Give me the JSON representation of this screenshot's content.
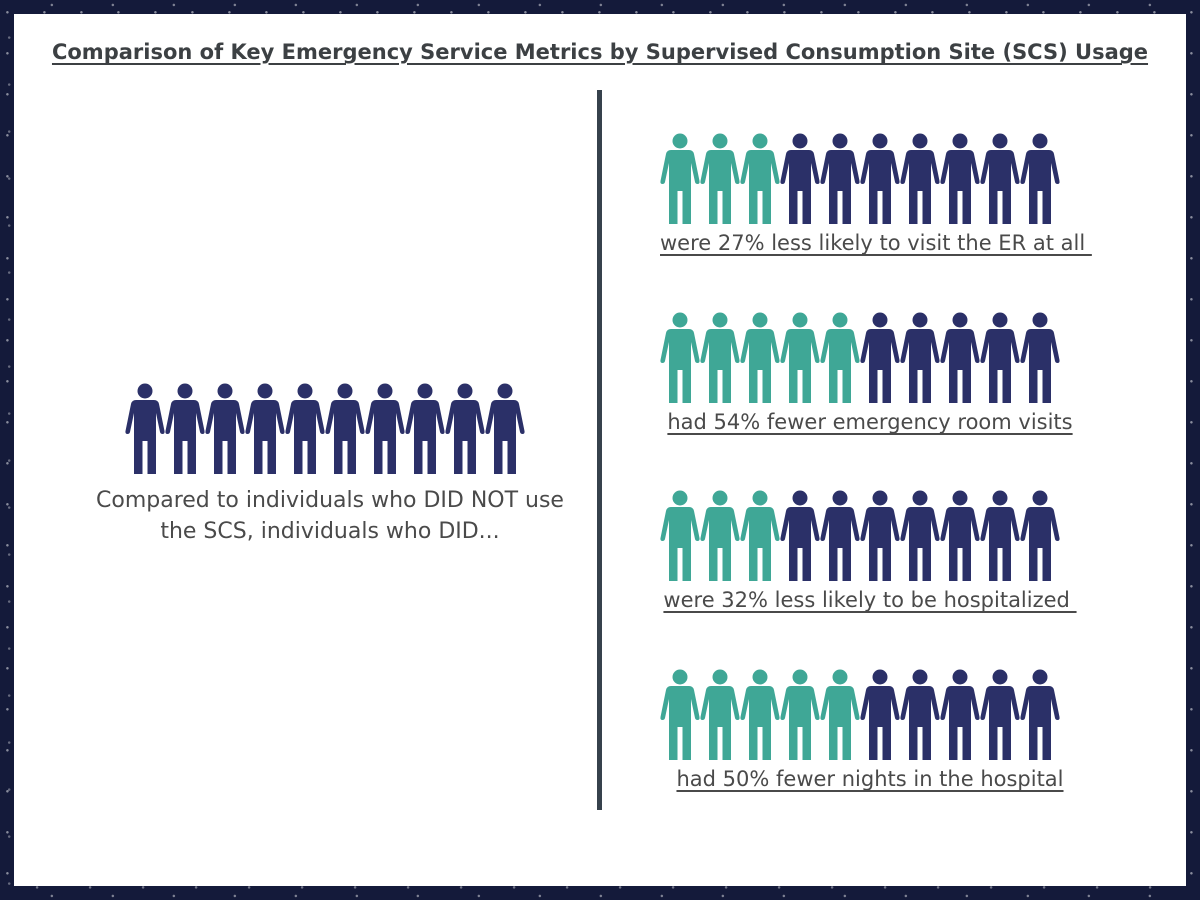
{
  "title": "Comparison of Key Emergency Service Metrics by Supervised Consumption Site (SCS) Usage",
  "colors": {
    "highlight": "#3fa796",
    "base": "#2b3068"
  },
  "icon": "person-icon",
  "comparison_group": {
    "figures": 10,
    "caption_line1": "Compared to individuals who DID NOT use",
    "caption_line2": "the SCS, individuals who DID..."
  },
  "metrics": [
    {
      "label": "were 27% less likely to visit the ER at all ",
      "highlighted": 3,
      "total": 10
    },
    {
      "label": "had 54% fewer emergency room visits",
      "highlighted": 5,
      "total": 10
    },
    {
      "label": "were 32% less likely to be hospitalized ",
      "highlighted": 3,
      "total": 10
    },
    {
      "label": "had 50% fewer nights in the hospital",
      "highlighted": 5,
      "total": 10
    }
  ]
}
